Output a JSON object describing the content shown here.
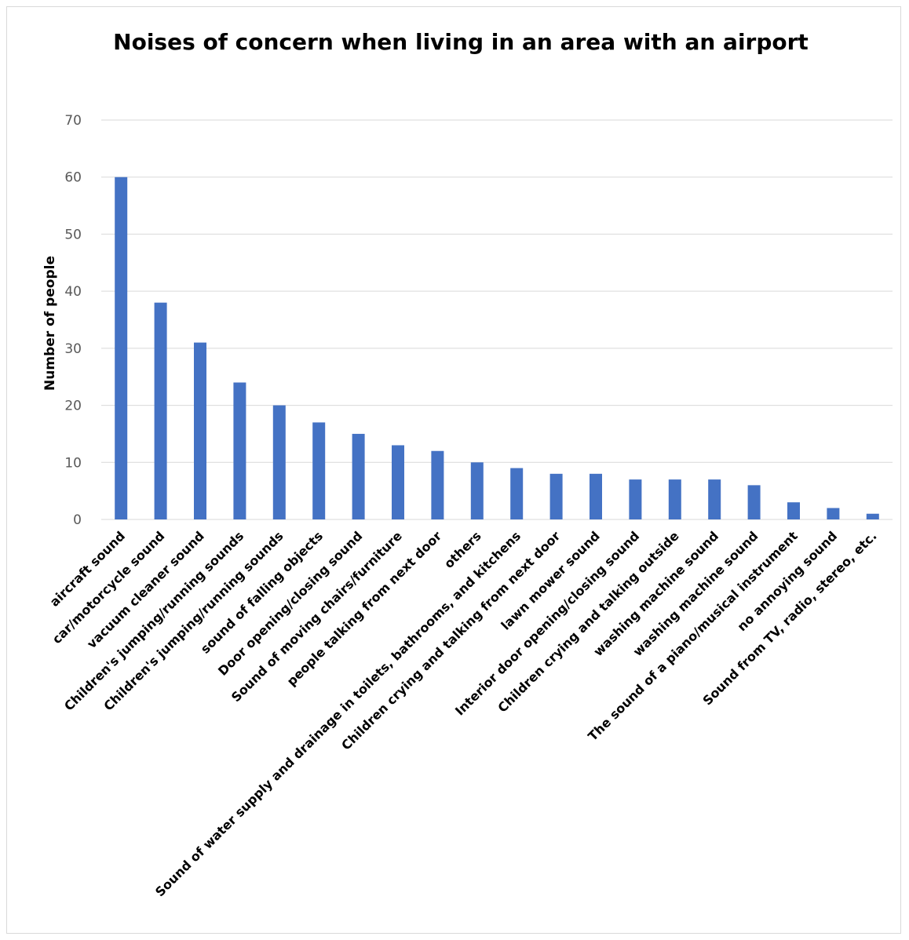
{
  "chart_data": {
    "type": "bar",
    "title": "Noises of concern when living in an area with an airport",
    "xlabel": "",
    "ylabel": "Number of people",
    "ylim": [
      0,
      70
    ],
    "yticks": [
      0,
      10,
      20,
      30,
      40,
      50,
      60,
      70
    ],
    "grid": true,
    "legend": "none",
    "bar_color": "#4472C4",
    "gridline_color": "#d9d9d9",
    "categories": [
      "aircraft sound",
      "car/motorcycle sound",
      "vacuum cleaner sound",
      "Children's jumping/running sounds",
      "Children's jumping/running sounds",
      "sound of falling objects",
      "Door opening/closing sound",
      "Sound of moving chairs/furniture",
      "people talking from next door",
      "others",
      "Sound of water supply and drainage in toilets, bathrooms, and kitchens",
      "Children crying and talking from next door",
      "lawn mower sound",
      "Interior door opening/closing sound",
      "Children crying and talking outside",
      "washing machine sound",
      "washing machine sound",
      "The sound of a piano/musical instrument",
      "no annoying sound",
      "Sound from TV, radio, stereo, etc."
    ],
    "values": [
      60,
      38,
      31,
      24,
      20,
      17,
      15,
      13,
      12,
      10,
      9,
      8,
      8,
      7,
      7,
      7,
      6,
      3,
      2,
      1
    ]
  }
}
